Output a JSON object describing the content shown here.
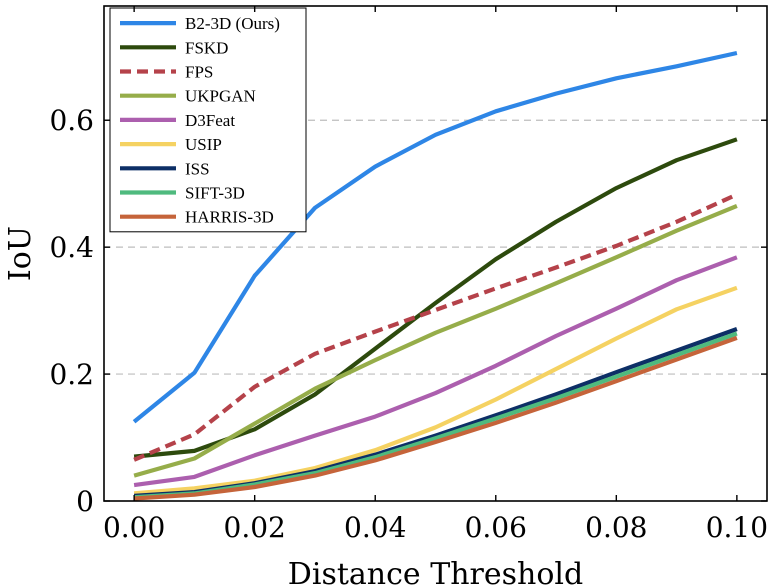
{
  "chart_data": {
    "type": "line",
    "title": "",
    "xlabel": "Distance Threshold",
    "ylabel": "IoU",
    "xlim": [
      -0.005,
      0.105
    ],
    "ylim": [
      0,
      0.78
    ],
    "grid": "horizontal dashed",
    "legend_position": "top-left",
    "x": [
      0.0,
      0.01,
      0.02,
      0.03,
      0.04,
      0.05,
      0.06,
      0.07,
      0.08,
      0.09,
      0.1
    ],
    "x_ticks": [
      {
        "value": 0.0,
        "label": "0.00"
      },
      {
        "value": 0.02,
        "label": "0.02"
      },
      {
        "value": 0.04,
        "label": "0.04"
      },
      {
        "value": 0.06,
        "label": "0.06"
      },
      {
        "value": 0.08,
        "label": "0.08"
      },
      {
        "value": 0.1,
        "label": "0.10"
      }
    ],
    "y_ticks": [
      {
        "value": 0.0,
        "label": "0"
      },
      {
        "value": 0.2,
        "label": "0.2"
      },
      {
        "value": 0.4,
        "label": "0.4"
      },
      {
        "value": 0.6,
        "label": "0.6"
      }
    ],
    "series": [
      {
        "name": "B2-3D (Ours)",
        "color": "#2e86e6",
        "dash": "solid",
        "values": [
          0.125,
          0.202,
          0.355,
          0.462,
          0.527,
          0.577,
          0.614,
          0.642,
          0.666,
          0.685,
          0.706
        ]
      },
      {
        "name": "FSKD",
        "color": "#2d4a0d",
        "dash": "solid",
        "values": [
          0.07,
          0.079,
          0.113,
          0.168,
          0.24,
          0.312,
          0.381,
          0.44,
          0.493,
          0.537,
          0.57
        ]
      },
      {
        "name": "FPS",
        "color": "#b5424a",
        "dash": "dashed",
        "values": [
          0.065,
          0.105,
          0.18,
          0.232,
          0.267,
          0.301,
          0.335,
          0.368,
          0.402,
          0.44,
          0.483
        ]
      },
      {
        "name": "UKPGAN",
        "color": "#96ad4a",
        "dash": "solid",
        "values": [
          0.04,
          0.067,
          0.122,
          0.177,
          0.222,
          0.265,
          0.303,
          0.343,
          0.384,
          0.426,
          0.465
        ]
      },
      {
        "name": "D3Feat",
        "color": "#ac5fae",
        "dash": "solid",
        "values": [
          0.025,
          0.038,
          0.072,
          0.103,
          0.133,
          0.17,
          0.213,
          0.26,
          0.303,
          0.348,
          0.384
        ]
      },
      {
        "name": "USIP",
        "color": "#f5d262",
        "dash": "solid",
        "values": [
          0.012,
          0.02,
          0.032,
          0.052,
          0.08,
          0.116,
          0.16,
          0.208,
          0.256,
          0.302,
          0.336
        ]
      },
      {
        "name": "ISS",
        "color": "#0d2f66",
        "dash": "solid",
        "values": [
          0.008,
          0.014,
          0.028,
          0.047,
          0.073,
          0.103,
          0.135,
          0.168,
          0.203,
          0.237,
          0.271
        ]
      },
      {
        "name": "SIFT-3D",
        "color": "#4fba7e",
        "dash": "solid",
        "values": [
          0.006,
          0.012,
          0.026,
          0.044,
          0.069,
          0.099,
          0.13,
          0.162,
          0.196,
          0.23,
          0.264
        ]
      },
      {
        "name": "HARRIS-3D",
        "color": "#c5643a",
        "dash": "solid",
        "values": [
          0.004,
          0.01,
          0.022,
          0.04,
          0.064,
          0.093,
          0.123,
          0.155,
          0.189,
          0.223,
          0.257
        ]
      }
    ]
  }
}
